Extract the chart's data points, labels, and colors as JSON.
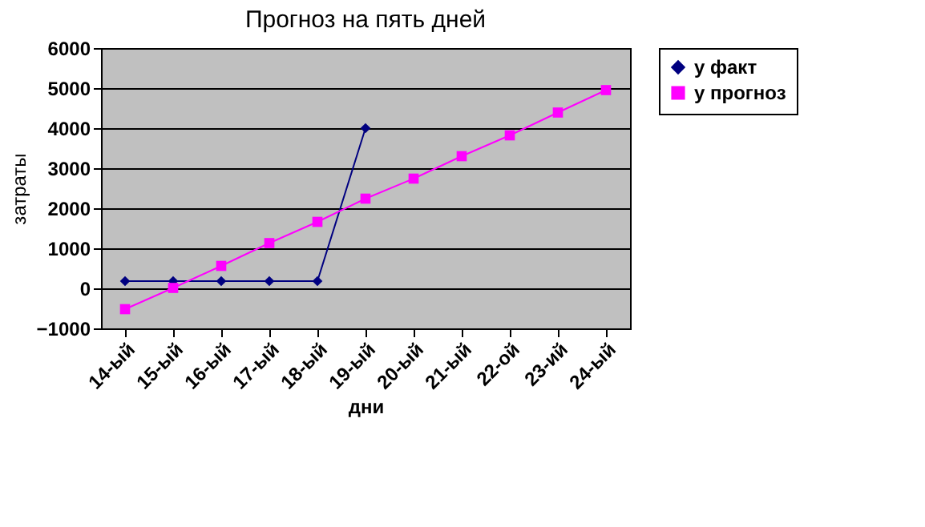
{
  "chart_data": {
    "type": "line",
    "title": "Прогноз на пять дней",
    "xlabel": "дни",
    "ylabel": "затраты",
    "categories": [
      "14-ый",
      "15-ый",
      "16-ый",
      "17-ый",
      "18-ый",
      "19-ый",
      "20-ый",
      "21-ый",
      "22-ой",
      "23-ий",
      "24-ый"
    ],
    "series": [
      {
        "name": "у факт",
        "color": "#000080",
        "marker": "diamond",
        "values": [
          180,
          180,
          180,
          180,
          180,
          4000,
          null,
          null,
          null,
          null,
          null
        ]
      },
      {
        "name": "у прогноз",
        "color": "#ff00ff",
        "marker": "square",
        "values": [
          -520,
          10,
          560,
          1130,
          1660,
          2240,
          2740,
          3300,
          3820,
          4390,
          4950
        ]
      }
    ],
    "ylim": [
      -1000,
      6000
    ],
    "yticks": [
      -1000,
      0,
      1000,
      2000,
      3000,
      4000,
      5000,
      6000
    ],
    "grid": "y",
    "legend": "right"
  }
}
